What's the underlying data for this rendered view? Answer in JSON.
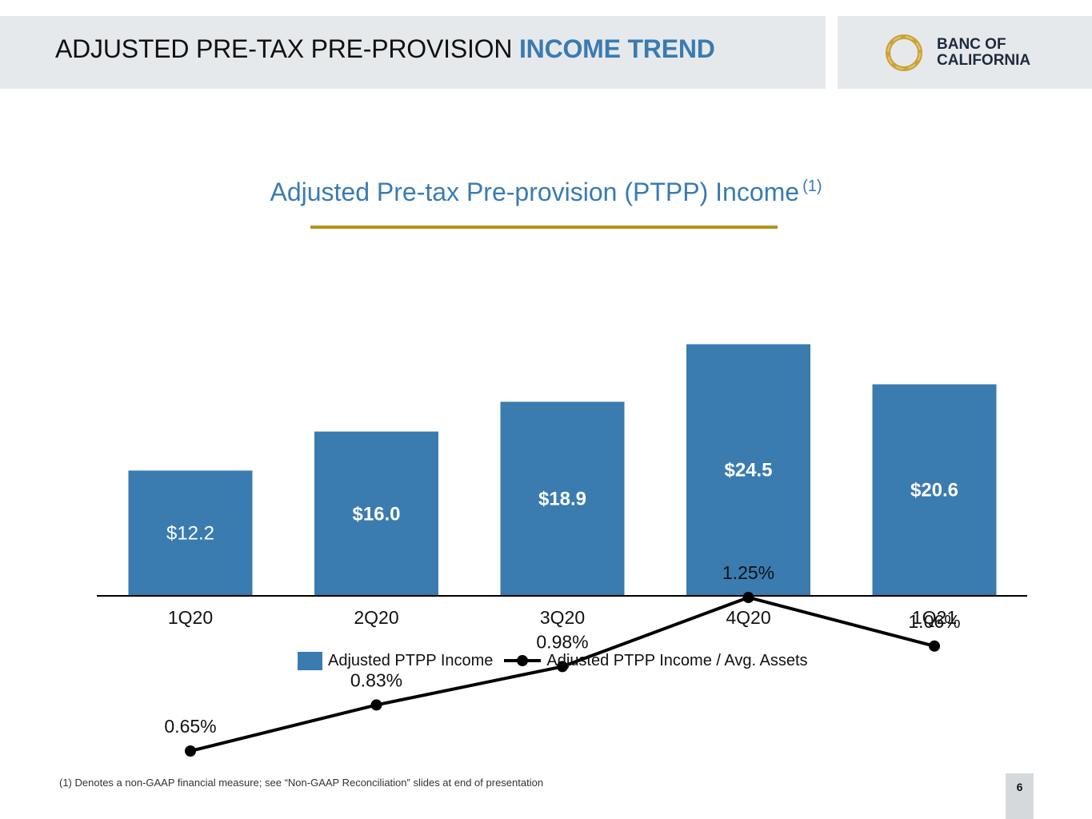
{
  "header": {
    "title_plain": "ADJUSTED PRE-TAX PRE-PROVISION ",
    "title_accent": "INCOME TREND"
  },
  "logo": {
    "line1": "BANC OF",
    "line2": "CALIFORNIA",
    "icon": "ring-logo-icon"
  },
  "chart_data": {
    "type": "bar",
    "title": "Adjusted Pre-tax Pre-provision (PTPP) Income",
    "title_note": "(1)",
    "categories": [
      "1Q20",
      "2Q20",
      "3Q20",
      "4Q20",
      "1Q21"
    ],
    "series": [
      {
        "name": "Adjusted PTPP Income",
        "type": "bar",
        "values": [
          12.2,
          16.0,
          18.9,
          24.5,
          20.6
        ],
        "labels": [
          "$12.2",
          "$16.0",
          "$18.9",
          "$24.5",
          "$20.6"
        ],
        "color": "#3a7bb0"
      },
      {
        "name": "Adjusted PTPP Income / Avg. Assets",
        "type": "line",
        "values": [
          0.65,
          0.83,
          0.98,
          1.25,
          1.06
        ],
        "labels": [
          "0.65%",
          "0.83%",
          "0.98%",
          "1.25%",
          "1.06%"
        ],
        "color": "#000000"
      }
    ],
    "grid": false,
    "legend_position": "bottom"
  },
  "footnote": "(1)  Denotes a non-GAAP financial measure; see “Non-GAAP Reconciliation” slides at end of presentation",
  "page_number": "6",
  "colors": {
    "accent_blue": "#3a7bb0",
    "gold": "#b8921a",
    "header_bg": "#e6e9ec"
  }
}
